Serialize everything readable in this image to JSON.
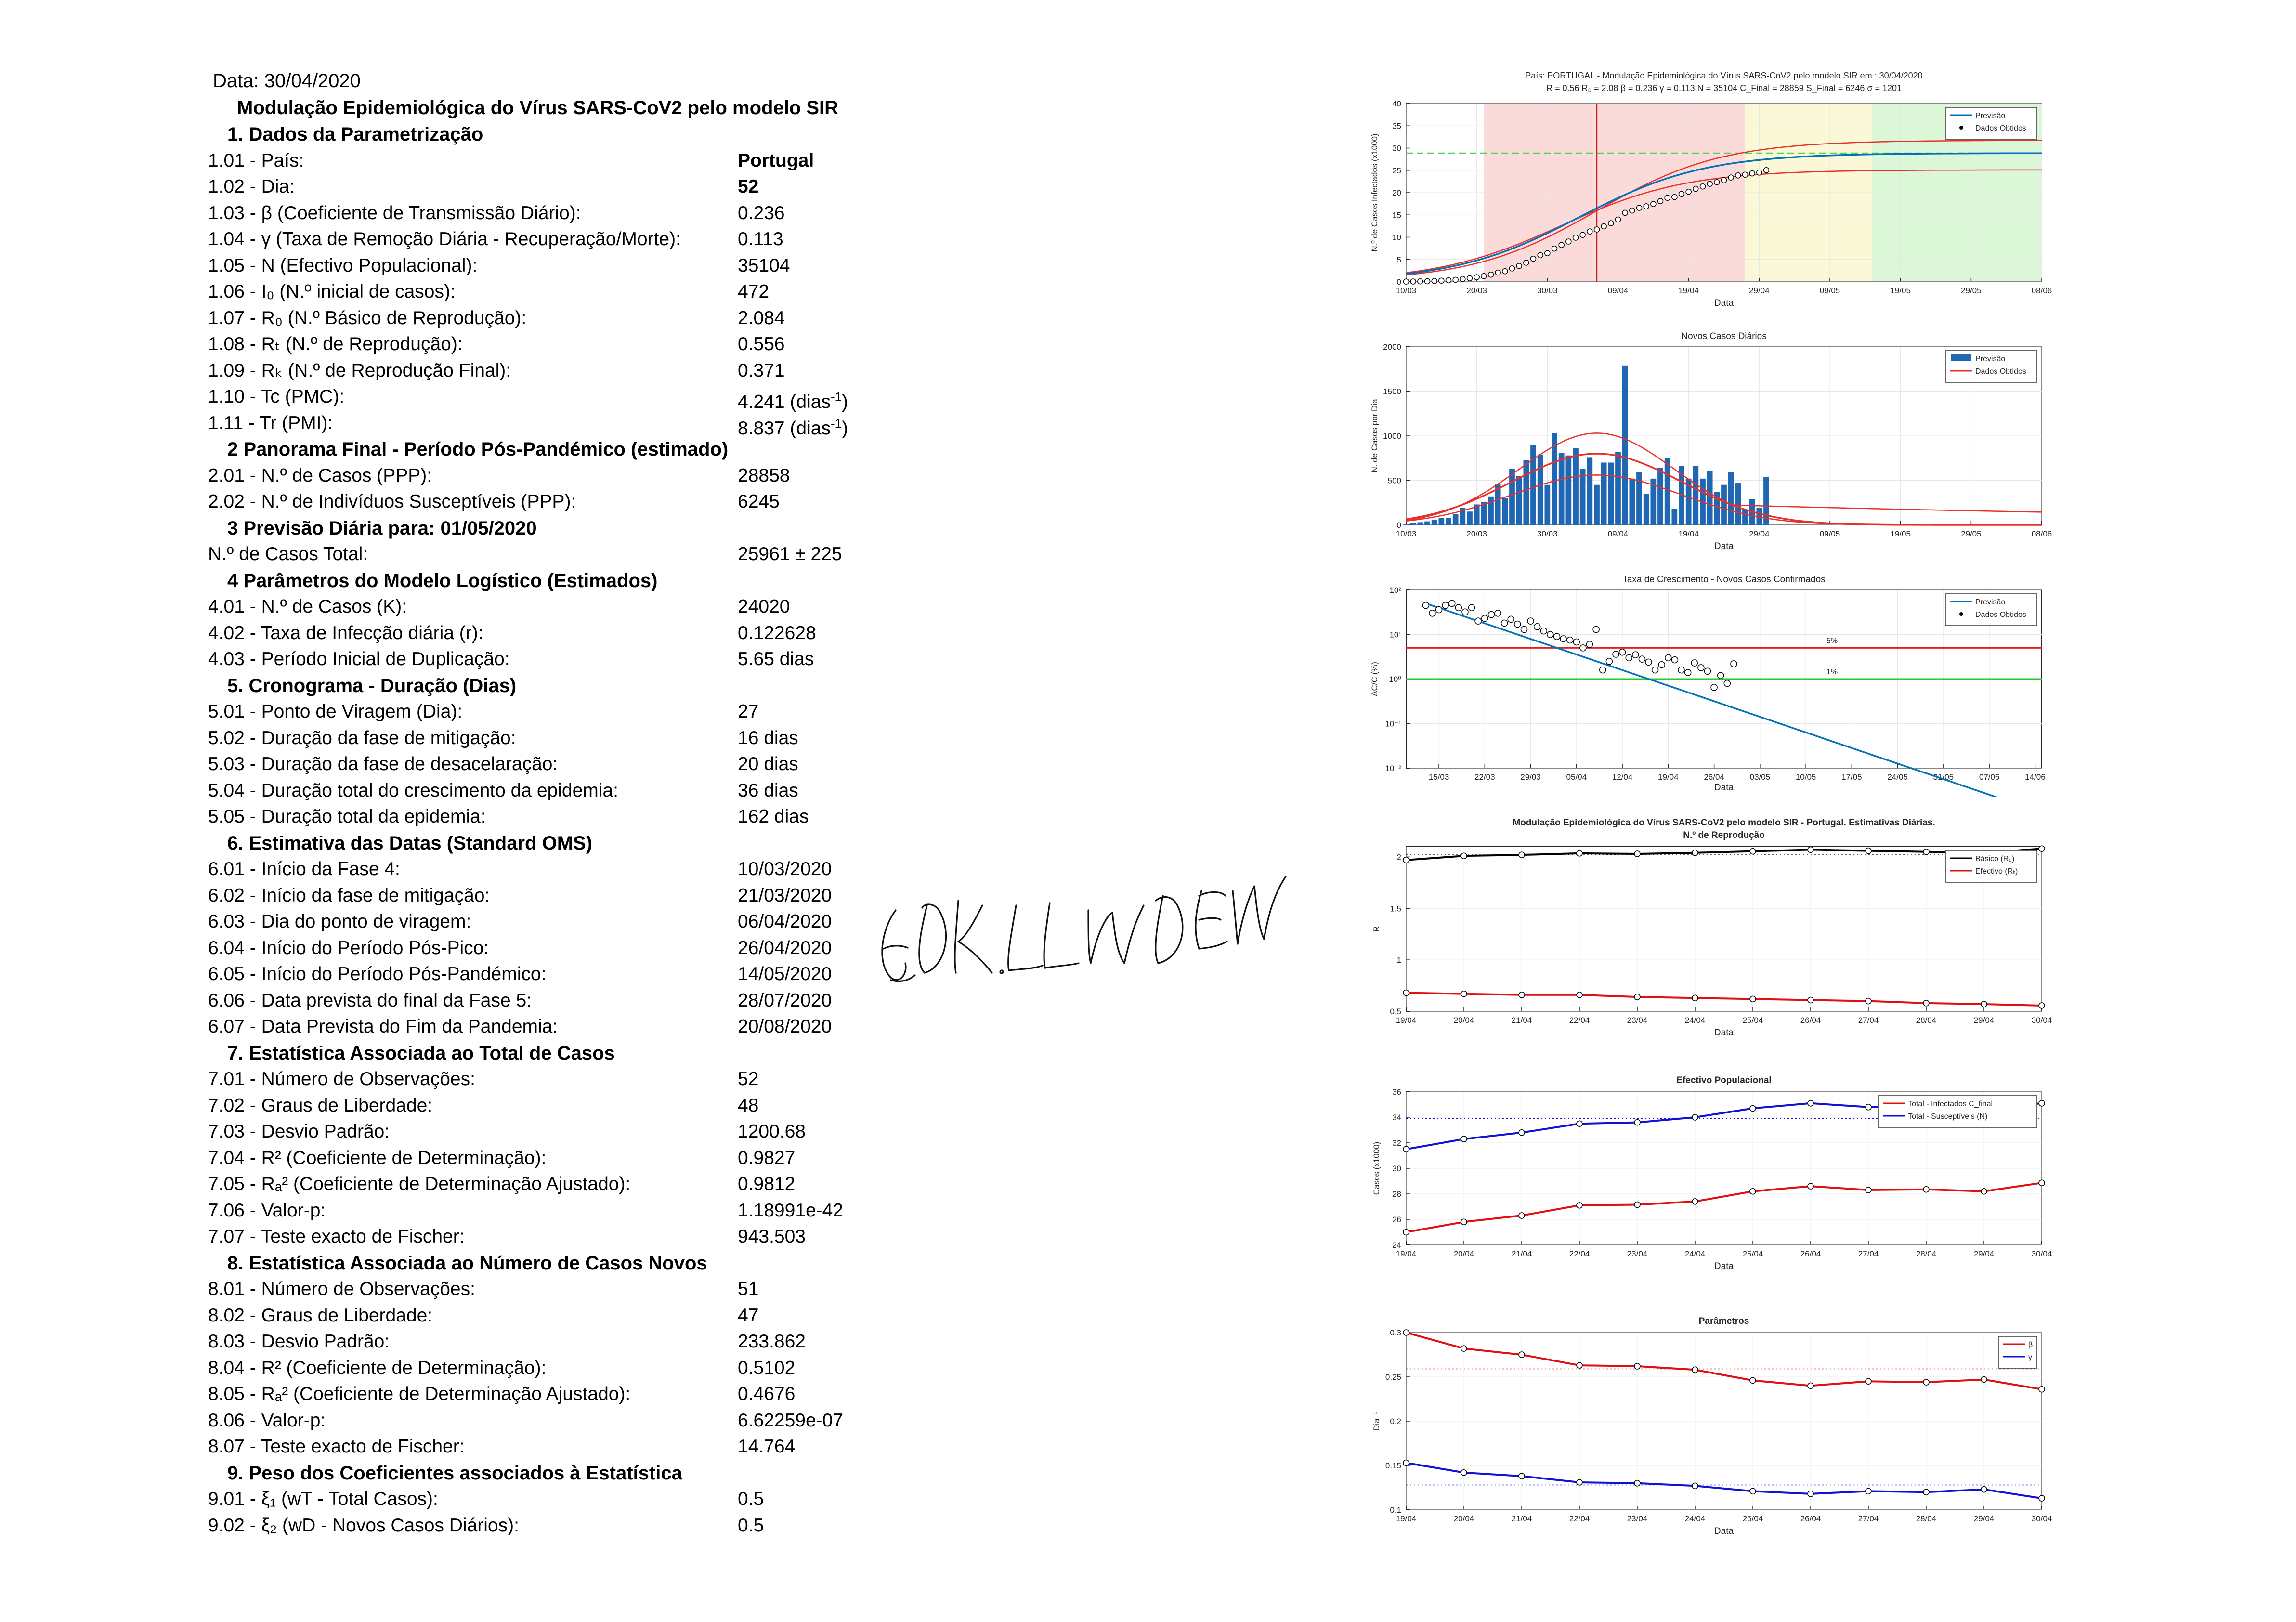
{
  "report": {
    "date": "Data: 30/04/2020",
    "title": "Modulação Epidemiológica do Vírus SARS-CoV2 pelo modelo SIR",
    "sections": [
      {
        "title": "1.  Dados da Parametrização",
        "rows": [
          {
            "label": "1.01 - País:",
            "value": "Portugal",
            "bold": true
          },
          {
            "label": "1.02 - Dia:",
            "value": "52",
            "bold": true
          },
          {
            "label": "1.03 - β (Coeficiente de Transmissão Diário):",
            "value": "0.236"
          },
          {
            "label": "1.04 - γ (Taxa de Remoção Diária - Recuperação/Morte):",
            "value": "0.113"
          },
          {
            "label": "1.05 - N (Efectivo Populacional):",
            "value": "35104"
          },
          {
            "label": "1.06 - I₀ (N.º inicial de casos):",
            "value": "472"
          },
          {
            "label": "1.07 - R₀ (N.º Básico de Reprodução):",
            "value": "2.084"
          },
          {
            "label": "1.08 - Rₜ (N.º de Reprodução):",
            "value": "0.556"
          },
          {
            "label": "1.09 - Rₖ (N.º de Reprodução Final):",
            "value": "0.371"
          },
          {
            "label": "1.10 - Tc (PMC):",
            "value": "4.241 (dias",
            "sup": "-1",
            "tail": ")"
          },
          {
            "label": "1.11 - Tr (PMI):",
            "value": "8.837 (dias",
            "sup": "-1",
            "tail": ")"
          }
        ]
      },
      {
        "title": "2  Panorama Final - Período Pós-Pandémico (estimado)",
        "rows": [
          {
            "label": "2.01 - N.º de Casos (PPP):",
            "value": "28858"
          },
          {
            "label": "2.02 - N.º de Indivíduos Susceptíveis (PPP):",
            "value": "6245"
          }
        ]
      },
      {
        "title": "3  Previsão Diária para: 01/05/2020",
        "rows": [
          {
            "label": "N.º de Casos Total:",
            "value": "25961 ± 225"
          }
        ]
      },
      {
        "title": "4  Parâmetros do Modelo Logístico (Estimados)",
        "rows": [
          {
            "label": "4.01 - N.º de Casos (K):",
            "value": "24020"
          },
          {
            "label": "4.02 - Taxa de Infecção diária (r):",
            "value": "0.122628"
          },
          {
            "label": "4.03 - Período Inicial de Duplicação:",
            "value": "5.65 dias"
          }
        ]
      },
      {
        "title": "5.  Cronograma - Duração (Dias)",
        "rows": [
          {
            "label": "5.01 - Ponto de Viragem (Dia):",
            "value": "27"
          },
          {
            "label": "5.02 - Duração da fase de mitigação:",
            "value": "16 dias"
          },
          {
            "label": "5.03 - Duração da fase de desacelaração:",
            "value": "20 dias"
          },
          {
            "label": "5.04 - Duração total do crescimento da epidemia:",
            "value": "36 dias"
          },
          {
            "label": "5.05 - Duração total da epidemia:",
            "value": "162 dias"
          }
        ]
      },
      {
        "title": "6. Estimativa das Datas (Standard OMS)",
        "rows": [
          {
            "label": "6.01 - Início da Fase 4:",
            "value": "10/03/2020"
          },
          {
            "label": "6.02 - Início da fase de mitigação:",
            "value": "21/03/2020"
          },
          {
            "label": "6.03 - Dia do ponto de viragem:",
            "value": "06/04/2020"
          },
          {
            "label": "6.04 - Início do Período Pós-Pico:",
            "value": "26/04/2020"
          },
          {
            "label": "6.05 - Início do Período Pós-Pandémico:",
            "value": "14/05/2020"
          },
          {
            "label": "6.06 - Data prevista do final da Fase 5:",
            "value": "28/07/2020"
          },
          {
            "label": "6.07 - Data Prevista do Fim da Pandemia:",
            "value": "20/08/2020"
          }
        ]
      },
      {
        "title": "7. Estatística Associada ao Total de Casos",
        "rows": [
          {
            "label": "7.01 - Número de Observações:",
            "value": "52"
          },
          {
            "label": "7.02 - Graus de Liberdade:",
            "value": "48"
          },
          {
            "label": "7.03 - Desvio Padrão:",
            "value": "1200.68"
          },
          {
            "label": "7.04 - R² (Coeficiente de Determinação):",
            "value": "0.9827"
          },
          {
            "label": "7.05 - Rₐ² (Coeficiente de Determinação Ajustado):",
            "value": " 0.9812"
          },
          {
            "label": "7.06 - Valor-p:",
            "value": "1.18991e-42"
          },
          {
            "label": "7.07 - Teste exacto de Fischer:",
            "value": "943.503"
          }
        ]
      },
      {
        "title": "8. Estatística Associada ao Número de Casos Novos",
        "rows": [
          {
            "label": "8.01 - Número de Observações:",
            "value": "51"
          },
          {
            "label": "8.02 - Graus de Liberdade:",
            "value": "47"
          },
          {
            "label": "8.03 - Desvio Padrão:",
            "value": "233.862"
          },
          {
            "label": "8.04 - R² (Coeficiente de Determinação):",
            "value": "0.5102"
          },
          {
            "label": "8.05 - Rₐ² (Coeficiente de Determinação Ajustado):",
            "value": "0.4676"
          },
          {
            "label": "8.06 - Valor-p:",
            "value": "6.62259e-07"
          },
          {
            "label": "8.07 - Teste exacto de Fischer:",
            "value": "14.764"
          }
        ]
      },
      {
        "title": "9. Peso dos Coeficientes associados à Estatística",
        "rows": [
          {
            "label": "9.01 - ξ₁ (wT - Total Casos):",
            "value": "0.5"
          },
          {
            "label": "9.02 - ξ₂ (wD - Novos Casos Diários):",
            "value": "0.5"
          }
        ]
      }
    ],
    "signature": "E. DK. LIN DEM ANN"
  },
  "chart_data": [
    {
      "type": "line",
      "title": "País: PORTUGAL - Modulação Epidemiológica do Vírus SARS-CoV2 pelo modelo SIR em : 30/04/2020",
      "subtitle": "R = 0.56  R₀ = 2.08  β = 0.236  γ = 0.113  N = 35104  C_Final = 28859  S_Final = 6246  σ = 1201",
      "xlabel": "Data",
      "ylabel": "N.º de Casos Infectados (x1000)",
      "xticks": [
        "10/03",
        "20/03",
        "30/03",
        "09/04",
        "19/04",
        "29/04",
        "09/05",
        "19/05",
        "29/05",
        "08/06"
      ],
      "xlim": [
        0,
        90
      ],
      "ylim": [
        0,
        40
      ],
      "yticks": [
        0,
        5,
        10,
        15,
        20,
        25,
        30,
        35,
        40
      ],
      "legend": [
        "Previsão",
        "Dados Obtidos"
      ],
      "legend_position": "top-right",
      "phases": [
        {
          "from": 11,
          "to": 48,
          "color": "#fbdada"
        },
        {
          "from": 48,
          "to": 66,
          "color": "#fbf8d8"
        },
        {
          "from": 66,
          "to": 90,
          "color": "#dcf7d8"
        }
      ],
      "turning_point_day": 27,
      "final_level": 28.86,
      "model": {
        "K": 28.86,
        "r": 0.113,
        "t0": 24.5,
        "base": 0.1
      },
      "observed": {
        "days": [
          0,
          1,
          2,
          3,
          4,
          5,
          6,
          7,
          8,
          9,
          10,
          11,
          12,
          13,
          14,
          15,
          16,
          17,
          18,
          19,
          20,
          21,
          22,
          23,
          24,
          25,
          26,
          27,
          28,
          29,
          30,
          31,
          32,
          33,
          34,
          35,
          36,
          37,
          38,
          39,
          40,
          41,
          42,
          43,
          44,
          45,
          46,
          47,
          48,
          49,
          50,
          51
        ],
        "values": [
          0.04,
          0.06,
          0.08,
          0.11,
          0.17,
          0.25,
          0.33,
          0.45,
          0.64,
          0.79,
          1.02,
          1.28,
          1.6,
          2.06,
          2.36,
          2.99,
          3.54,
          4.27,
          5.17,
          5.96,
          6.41,
          7.44,
          8.25,
          9.03,
          9.89,
          10.52,
          11.28,
          11.73,
          12.44,
          13.14,
          13.96,
          15.47,
          15.99,
          16.58,
          16.93,
          17.45,
          18.09,
          18.84,
          19.02,
          19.69,
          20.2,
          20.86,
          21.38,
          21.98,
          22.35,
          22.8,
          23.39,
          23.86,
          24.03,
          24.32,
          24.51,
          25.05
        ]
      },
      "colors": {
        "model": "#0072bd",
        "band": "#e8302a",
        "final": "#49d84a",
        "turning": "#d42222"
      }
    },
    {
      "type": "bar",
      "title": "Novos Casos Diários",
      "xlabel": "Data",
      "ylabel": "N. de Casos por Dia",
      "xticks": [
        "10/03",
        "20/03",
        "30/03",
        "09/04",
        "19/04",
        "29/04",
        "09/05",
        "19/05",
        "29/05",
        "08/06"
      ],
      "ylim": [
        0,
        2000
      ],
      "yticks": [
        0,
        500,
        1000,
        1500,
        2000
      ],
      "legend": [
        "Previsão",
        "Dados Obtidos"
      ],
      "legend_position": "top-right",
      "daily_new_cases": [
        10,
        20,
        30,
        40,
        60,
        80,
        80,
        120,
        190,
        150,
        230,
        260,
        320,
        460,
        300,
        630,
        550,
        730,
        900,
        790,
        450,
        1030,
        810,
        780,
        860,
        630,
        760,
        450,
        700,
        700,
        820,
        1790,
        520,
        590,
        350,
        520,
        640,
        750,
        180,
        660,
        520,
        660,
        520,
        600,
        370,
        450,
        590,
        470,
        170,
        290,
        190,
        540
      ],
      "colors": {
        "bars": "#1f66b3",
        "curves": "#e8302a"
      }
    },
    {
      "type": "scatter",
      "title": "Taxa de Crescimento - Novos Casos Confirmados",
      "xlabel": "Data",
      "ylabel": "ΔC/C (%)",
      "scale": "log",
      "xticks": [
        "15/03",
        "22/03",
        "29/03",
        "05/04",
        "12/04",
        "19/04",
        "26/04",
        "03/05",
        "10/05",
        "17/05",
        "24/05",
        "31/05",
        "07/06",
        "14/06"
      ],
      "yticks": [
        "10⁻²",
        "10⁻¹",
        "10⁰",
        "10¹",
        "10²"
      ],
      "legend": [
        "Previsão",
        "Dados Obtidos"
      ],
      "legend_position": "top-right",
      "thresholds": [
        {
          "label": "5%",
          "value": 5,
          "color": "#e81e1e"
        },
        {
          "label": "1%",
          "value": 1,
          "color": "#2cc72c"
        }
      ],
      "observed": {
        "days": [
          0,
          1,
          2,
          3,
          4,
          5,
          6,
          7,
          8,
          9,
          10,
          11,
          12,
          13,
          14,
          15,
          16,
          17,
          18,
          19,
          20,
          21,
          22,
          23,
          24,
          25,
          26,
          27,
          28,
          29,
          30,
          31,
          32,
          33,
          34,
          35,
          36,
          37,
          38,
          39,
          40,
          41,
          42,
          43,
          44,
          45,
          46,
          47
        ],
        "values": [
          45,
          30,
          36,
          45,
          50,
          40,
          32,
          40,
          20,
          23,
          28,
          30,
          18,
          22,
          17,
          13,
          20,
          15,
          12,
          10,
          9,
          8,
          7.5,
          6.8,
          5,
          6,
          13,
          1.6,
          2.5,
          3.6,
          4,
          3,
          3.5,
          2.8,
          2.4,
          1.6,
          2.1,
          3,
          2.7,
          1.6,
          1.4,
          2.3,
          1.8,
          1.5,
          0.65,
          1.2,
          0.8,
          2.2
        ]
      },
      "model": {
        "start": 50,
        "rate": 0.115
      }
    },
    {
      "type": "line",
      "title": "Modulação Epidemiológica do Vírus SARS-CoV2 pelo modelo SIR - Portugal. Estimativas Diárias.",
      "subtitle": "N.º de Reprodução",
      "xlabel": "Data",
      "ylabel": "R",
      "categories": [
        "19/04",
        "20/04",
        "21/04",
        "22/04",
        "23/04",
        "24/04",
        "25/04",
        "26/04",
        "27/04",
        "28/04",
        "29/04",
        "30/04"
      ],
      "ylim": [
        0.5,
        2.1
      ],
      "yticks": [
        "0.5",
        "1",
        "1.5",
        "2"
      ],
      "legend_position": "top-right",
      "series": [
        {
          "name": "Básico (R₀)",
          "color": "#000000",
          "values": [
            1.97,
            2.01,
            2.02,
            2.035,
            2.03,
            2.04,
            2.055,
            2.07,
            2.06,
            2.05,
            2.04,
            2.08
          ]
        },
        {
          "name": "Efectivo (Rₜ)",
          "color": "#e01010",
          "values": [
            0.68,
            0.67,
            0.66,
            0.66,
            0.64,
            0.63,
            0.62,
            0.61,
            0.6,
            0.58,
            0.57,
            0.556
          ]
        }
      ],
      "reference": {
        "value": 2.02,
        "color": "#000000"
      }
    },
    {
      "type": "line",
      "title": "Efectivo Populacional",
      "xlabel": "Data",
      "ylabel": "Casos (x1000)",
      "categories": [
        "19/04",
        "20/04",
        "21/04",
        "22/04",
        "23/04",
        "24/04",
        "25/04",
        "26/04",
        "27/04",
        "28/04",
        "29/04",
        "30/04"
      ],
      "ylim": [
        24,
        36
      ],
      "yticks": [
        "24",
        "26",
        "28",
        "30",
        "32",
        "34",
        "36"
      ],
      "legend_position": "top-right",
      "series": [
        {
          "name": "Total - Infectados C_final",
          "color": "#e01010",
          "values": [
            25.0,
            25.8,
            26.3,
            27.1,
            27.15,
            27.4,
            28.2,
            28.6,
            28.3,
            28.35,
            28.2,
            28.86
          ]
        },
        {
          "name": "Total - Susceptíveis (N)",
          "color": "#1010d8",
          "values": [
            31.5,
            32.3,
            32.8,
            33.5,
            33.6,
            34.0,
            34.7,
            35.1,
            34.8,
            34.9,
            34.6,
            35.1
          ]
        }
      ],
      "reference": {
        "value": 33.9,
        "color": "#1010d8"
      }
    },
    {
      "type": "line",
      "title": "Parâmetros",
      "xlabel": "Data",
      "ylabel": "Dia⁻¹",
      "categories": [
        "19/04",
        "20/04",
        "21/04",
        "22/04",
        "23/04",
        "24/04",
        "25/04",
        "26/04",
        "27/04",
        "28/04",
        "29/04",
        "30/04"
      ],
      "ylim": [
        0.1,
        0.3
      ],
      "yticks": [
        "0.1",
        "0.15",
        "0.2",
        "0.25",
        "0.3"
      ],
      "legend_position": "top-right",
      "series": [
        {
          "name": "β",
          "color": "#e01010",
          "values": [
            0.3,
            0.282,
            0.275,
            0.263,
            0.262,
            0.258,
            0.246,
            0.24,
            0.245,
            0.244,
            0.247,
            0.236
          ]
        },
        {
          "name": "γ",
          "color": "#1010d8",
          "values": [
            0.153,
            0.142,
            0.138,
            0.131,
            0.13,
            0.127,
            0.121,
            0.118,
            0.121,
            0.12,
            0.123,
            0.113
          ]
        }
      ],
      "references": [
        {
          "value": 0.259,
          "color": "#e01010"
        },
        {
          "value": 0.128,
          "color": "#1010d8"
        }
      ]
    }
  ]
}
